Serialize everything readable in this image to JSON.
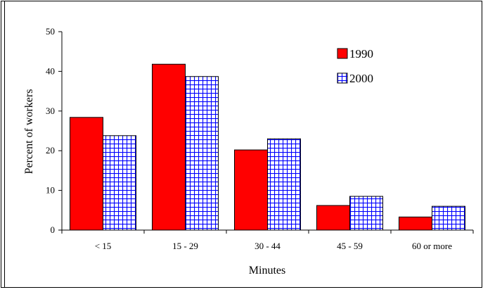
{
  "chart_data": {
    "type": "bar",
    "categories": [
      "< 15",
      "15 - 29",
      "30 - 44",
      "45 - 59",
      "60 or more"
    ],
    "series": [
      {
        "name": "1990",
        "values": [
          28.4,
          41.8,
          20.2,
          6.2,
          3.3
        ],
        "color": "#ff0000",
        "pattern": "solid"
      },
      {
        "name": "2000",
        "values": [
          23.8,
          38.7,
          23.0,
          8.5,
          6.0
        ],
        "color": "#0000ff",
        "pattern": "grid"
      }
    ],
    "title": "",
    "xlabel": "Minutes",
    "ylabel": "Percent of workers",
    "ylim": [
      0,
      50
    ],
    "yticks": [
      0,
      10,
      20,
      30,
      40,
      50
    ],
    "grid": false,
    "legend": "top-right"
  }
}
